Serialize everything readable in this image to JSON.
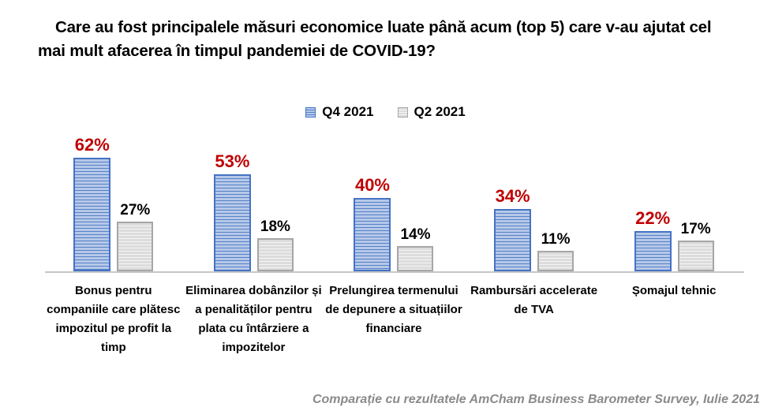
{
  "title": "Care au fost principalele măsuri economice luate până acum (top 5) care v-au ajutat cel mai mult afacerea în timpul pandemiei de COVID-19?",
  "footer": "Comparație cu rezultatele AmCham Business Barometer Survey, Iulie 2021",
  "colors": {
    "q4_bar_fill": "#b6c8e8",
    "q4_bar_stripe": "#5581c8",
    "q4_bar_border": "#4472c4",
    "q4_value_label": "#c00000",
    "q2_bar_fill": "#dcdcdc",
    "q2_bar_stripe": "#f5f5f5",
    "q2_bar_border": "#a6a6a6",
    "q2_value_label": "#000000",
    "axis_line": "#c6c6c6",
    "footer_text": "#8a8a8a"
  },
  "chart_data": {
    "type": "bar",
    "title": "Care au fost principalele măsuri economice luate până acum (top 5) care v-au ajutat cel mai mult afacerea în timpul pandemiei de COVID-19?",
    "categories": [
      "Bonus pentru companiile care plătesc impozitul pe profit la timp",
      "Eliminarea dobânzilor și a penalităților pentru plata cu întârziere a impozitelor",
      "Prelungirea termenului de depunere a situațiilor financiare",
      "Rambursări accelerate de TVA",
      "Șomajul tehnic"
    ],
    "series": [
      {
        "name": "Q4 2021",
        "values": [
          62,
          53,
          40,
          34,
          22
        ],
        "fill": "#b6c8e8",
        "stripe": "#5581c8",
        "border": "#4472c4",
        "label_color": "#c00000"
      },
      {
        "name": "Q2 2021",
        "values": [
          27,
          18,
          14,
          11,
          17
        ],
        "fill": "#dcdcdc",
        "stripe": "#f5f5f5",
        "border": "#a6a6a6",
        "label_color": "#000000"
      }
    ],
    "value_suffix": "%",
    "xlabel": "",
    "ylabel": "",
    "ylim": [
      0,
      65
    ],
    "grid": false,
    "legend_position": "top",
    "annotation": "Comparație cu rezultatele AmCham Business Barometer Survey, Iulie 2021"
  }
}
